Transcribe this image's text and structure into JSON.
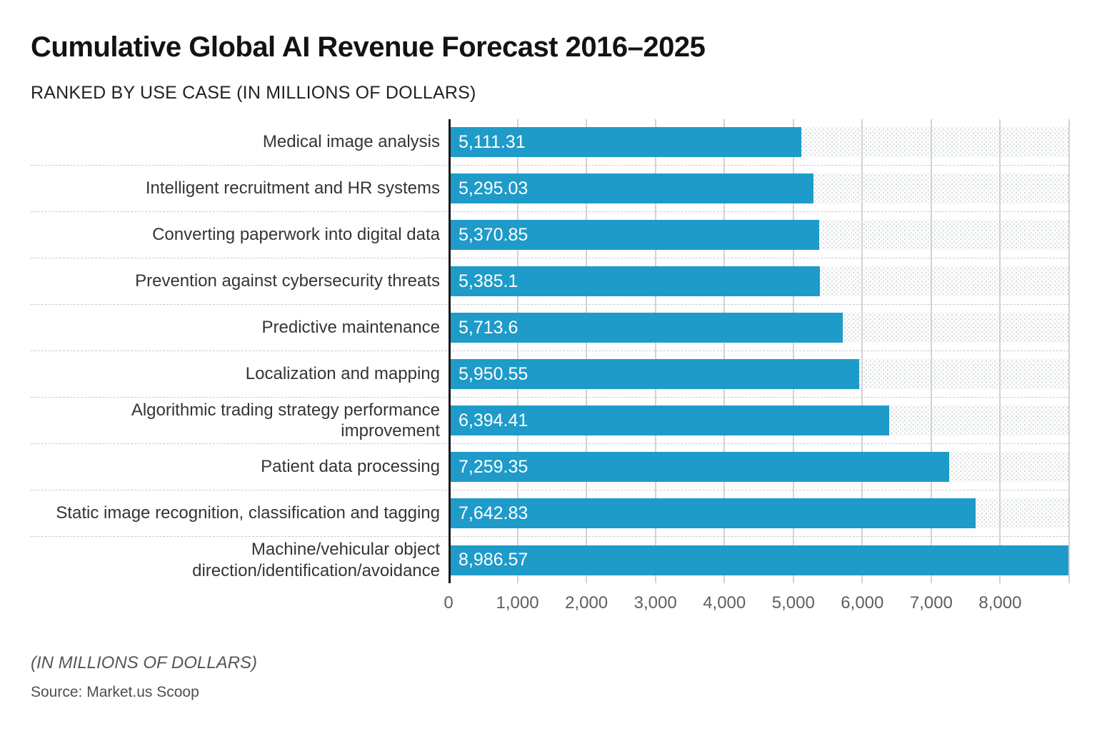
{
  "header": {
    "title": "Cumulative Global AI Revenue Forecast 2016–2025",
    "subtitle": "RANKED BY USE CASE (IN MILLIONS OF DOLLARS)"
  },
  "chart_data": {
    "type": "bar",
    "orientation": "horizontal",
    "title": "Cumulative Global AI Revenue Forecast 2016–2025",
    "subtitle": "RANKED BY USE CASE (IN MILLIONS OF DOLLARS)",
    "categories": [
      "Medical image analysis",
      "Intelligent recruitment and HR systems",
      "Converting paperwork into digital data",
      "Prevention against cybersecurity threats",
      "Predictive maintenance",
      "Localization and mapping",
      "Algorithmic trading strategy performance improvement",
      "Patient data processing",
      "Static image recognition, classification and tagging",
      "Machine/vehicular object direction/identification/avoidance"
    ],
    "values": [
      5111.31,
      5295.03,
      5370.85,
      5385.1,
      5713.6,
      5950.55,
      6394.41,
      7259.35,
      7642.83,
      8986.57
    ],
    "value_labels": [
      "5,111.31",
      "5,295.03",
      "5,370.85",
      "5,385.1",
      "5,713.6",
      "5,950.55",
      "6,394.41",
      "7,259.35",
      "7,642.83",
      "8,986.57"
    ],
    "x_ticks": [
      "0",
      "1,000",
      "2,000",
      "3,000",
      "4,000",
      "5,000",
      "6,000",
      "7,000",
      "8,000"
    ],
    "axis_min": 0,
    "axis_max": 9000,
    "tick_step": 1000,
    "grid": true,
    "legend_position": "none",
    "bar_color": "#1e9bc9",
    "units": "millions of dollars"
  },
  "footer": {
    "note": "(IN MILLIONS OF DOLLARS)",
    "source": "Source: Market.us Scoop"
  }
}
